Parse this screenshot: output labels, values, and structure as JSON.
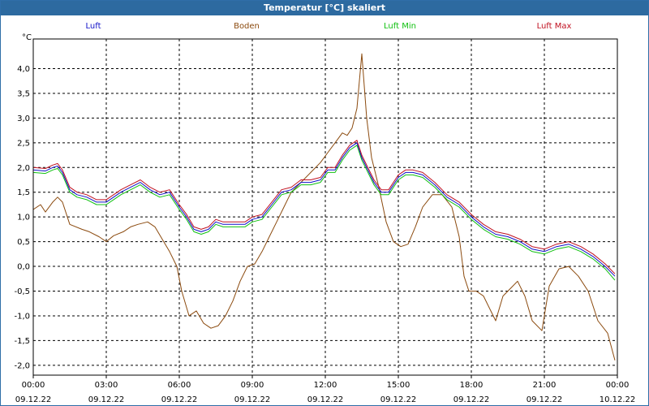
{
  "window": {
    "title": "Temperatur [°C] skaliert"
  },
  "chart_data": {
    "type": "line",
    "title": "Temperatur [°C] skaliert",
    "ylabel": "°C",
    "xlabel": "",
    "ylim": [
      -2.2,
      4.6
    ],
    "xlim": [
      0,
      24
    ],
    "grid": true,
    "legend_position": "top",
    "y_ticks": [
      "-2,0",
      "-1,5",
      "-1,0",
      "-0,5",
      "0,0",
      "0,5",
      "1,0",
      "1,5",
      "2,0",
      "2,5",
      "3,0",
      "3,5",
      "4,0"
    ],
    "y_tick_values": [
      -2.0,
      -1.5,
      -1.0,
      -0.5,
      0.0,
      0.5,
      1.0,
      1.5,
      2.0,
      2.5,
      3.0,
      3.5,
      4.0
    ],
    "x_tick_times": [
      "00:00",
      "03:00",
      "06:00",
      "09:00",
      "12:00",
      "15:00",
      "18:00",
      "21:00",
      "00:00"
    ],
    "x_tick_dates": [
      "09.12.22",
      "09.12.22",
      "09.12.22",
      "09.12.22",
      "09.12.22",
      "09.12.22",
      "09.12.22",
      "09.12.22",
      "10.12.22"
    ],
    "x_tick_hours": [
      0,
      3,
      6,
      9,
      12,
      15,
      18,
      21,
      24
    ],
    "series": [
      {
        "name": "Boden",
        "color": "#8b4a0e",
        "x": [
          0,
          0.3,
          0.5,
          0.8,
          1.0,
          1.2,
          1.5,
          2.0,
          2.3,
          2.7,
          3.0,
          3.3,
          3.7,
          4.0,
          4.3,
          4.7,
          5.0,
          5.3,
          5.6,
          5.9,
          6.1,
          6.4,
          6.7,
          7.0,
          7.3,
          7.6,
          7.9,
          8.2,
          8.5,
          8.8,
          9.1,
          9.4,
          9.7,
          10.0,
          10.3,
          10.6,
          11.0,
          11.4,
          11.8,
          12.1,
          12.4,
          12.7,
          12.9,
          13.1,
          13.3,
          13.5,
          13.7,
          13.9,
          14.2,
          14.5,
          14.8,
          15.1,
          15.4,
          15.7,
          16.0,
          16.4,
          16.8,
          17.2,
          17.5,
          17.7,
          17.9,
          18.2,
          18.5,
          18.8,
          19.0,
          19.3,
          19.6,
          19.9,
          20.2,
          20.5,
          20.9,
          21.2,
          21.6,
          22.0,
          22.4,
          22.8,
          23.2,
          23.6,
          23.9
        ],
        "values": [
          1.15,
          1.25,
          1.1,
          1.3,
          1.4,
          1.3,
          0.85,
          0.75,
          0.7,
          0.6,
          0.5,
          0.62,
          0.7,
          0.8,
          0.85,
          0.9,
          0.8,
          0.55,
          0.3,
          0.0,
          -0.5,
          -1.0,
          -0.9,
          -1.15,
          -1.25,
          -1.2,
          -1.0,
          -0.7,
          -0.3,
          0.0,
          0.05,
          0.3,
          0.6,
          0.9,
          1.2,
          1.5,
          1.7,
          1.9,
          2.1,
          2.3,
          2.5,
          2.7,
          2.65,
          2.8,
          3.2,
          4.3,
          3.0,
          2.2,
          1.6,
          0.9,
          0.5,
          0.4,
          0.45,
          0.8,
          1.2,
          1.45,
          1.45,
          1.2,
          0.6,
          -0.2,
          -0.5,
          -0.5,
          -0.6,
          -0.9,
          -1.1,
          -0.6,
          -0.45,
          -0.3,
          -0.6,
          -1.1,
          -1.3,
          -0.4,
          -0.05,
          0.0,
          -0.2,
          -0.5,
          -1.1,
          -1.35,
          -1.9
        ]
      },
      {
        "name": "Luft",
        "color": "#1010c8",
        "x": [
          0,
          0.5,
          0.8,
          1.0,
          1.2,
          1.5,
          1.8,
          2.2,
          2.6,
          3.0,
          3.3,
          3.6,
          4.0,
          4.4,
          4.8,
          5.2,
          5.6,
          6.0,
          6.3,
          6.6,
          6.9,
          7.2,
          7.5,
          7.8,
          8.1,
          8.4,
          8.7,
          9.0,
          9.4,
          9.8,
          10.2,
          10.6,
          11.0,
          11.4,
          11.8,
          12.1,
          12.4,
          12.7,
          13.0,
          13.3,
          13.5,
          13.7,
          14.0,
          14.3,
          14.6,
          15.0,
          15.3,
          15.6,
          16.0,
          16.5,
          17.0,
          17.5,
          18.0,
          18.5,
          19.0,
          19.5,
          20.0,
          20.5,
          21.0,
          21.5,
          22.0,
          22.5,
          23.0,
          23.5,
          23.9
        ],
        "values": [
          1.95,
          1.93,
          2.0,
          2.03,
          1.9,
          1.55,
          1.45,
          1.4,
          1.3,
          1.3,
          1.4,
          1.5,
          1.6,
          1.7,
          1.55,
          1.45,
          1.5,
          1.2,
          1.0,
          0.75,
          0.7,
          0.75,
          0.9,
          0.85,
          0.85,
          0.85,
          0.85,
          0.95,
          1.0,
          1.25,
          1.5,
          1.55,
          1.7,
          1.7,
          1.75,
          1.95,
          1.95,
          2.2,
          2.4,
          2.5,
          2.2,
          2.0,
          1.7,
          1.5,
          1.5,
          1.8,
          1.9,
          1.9,
          1.85,
          1.65,
          1.4,
          1.25,
          1.0,
          0.8,
          0.65,
          0.6,
          0.5,
          0.35,
          0.3,
          0.4,
          0.45,
          0.35,
          0.2,
          0.0,
          -0.2
        ]
      },
      {
        "name": "Luft Min",
        "color": "#10c010",
        "x": [
          0,
          0.5,
          0.8,
          1.0,
          1.2,
          1.5,
          1.8,
          2.2,
          2.6,
          3.0,
          3.3,
          3.6,
          4.0,
          4.4,
          4.8,
          5.2,
          5.6,
          6.0,
          6.3,
          6.6,
          6.9,
          7.2,
          7.5,
          7.8,
          8.1,
          8.4,
          8.7,
          9.0,
          9.4,
          9.8,
          10.2,
          10.6,
          11.0,
          11.4,
          11.8,
          12.1,
          12.4,
          12.7,
          13.0,
          13.3,
          13.5,
          13.7,
          14.0,
          14.3,
          14.6,
          15.0,
          15.3,
          15.6,
          16.0,
          16.5,
          17.0,
          17.5,
          18.0,
          18.5,
          19.0,
          19.5,
          20.0,
          20.5,
          21.0,
          21.5,
          22.0,
          22.5,
          23.0,
          23.5,
          23.9
        ],
        "values": [
          1.9,
          1.88,
          1.95,
          1.98,
          1.85,
          1.5,
          1.4,
          1.35,
          1.25,
          1.25,
          1.35,
          1.45,
          1.55,
          1.65,
          1.5,
          1.4,
          1.45,
          1.15,
          0.95,
          0.7,
          0.65,
          0.7,
          0.85,
          0.8,
          0.8,
          0.8,
          0.8,
          0.9,
          0.95,
          1.2,
          1.45,
          1.5,
          1.65,
          1.65,
          1.7,
          1.9,
          1.9,
          2.15,
          2.35,
          2.45,
          2.15,
          1.95,
          1.65,
          1.45,
          1.45,
          1.75,
          1.85,
          1.85,
          1.8,
          1.6,
          1.35,
          1.2,
          0.95,
          0.75,
          0.6,
          0.55,
          0.45,
          0.3,
          0.25,
          0.35,
          0.4,
          0.3,
          0.15,
          -0.05,
          -0.28
        ]
      },
      {
        "name": "Luft Max",
        "color": "#c01020",
        "x": [
          0,
          0.5,
          0.8,
          1.0,
          1.2,
          1.5,
          1.8,
          2.2,
          2.6,
          3.0,
          3.3,
          3.6,
          4.0,
          4.4,
          4.8,
          5.2,
          5.6,
          6.0,
          6.3,
          6.6,
          6.9,
          7.2,
          7.5,
          7.8,
          8.1,
          8.4,
          8.7,
          9.0,
          9.4,
          9.8,
          10.2,
          10.6,
          11.0,
          11.4,
          11.8,
          12.1,
          12.4,
          12.7,
          13.0,
          13.3,
          13.5,
          13.7,
          14.0,
          14.3,
          14.6,
          15.0,
          15.3,
          15.6,
          16.0,
          16.5,
          17.0,
          17.5,
          18.0,
          18.5,
          19.0,
          19.5,
          20.0,
          20.5,
          21.0,
          21.5,
          22.0,
          22.5,
          23.0,
          23.5,
          23.9
        ],
        "values": [
          2.0,
          1.98,
          2.05,
          2.08,
          1.95,
          1.6,
          1.5,
          1.45,
          1.35,
          1.35,
          1.45,
          1.55,
          1.65,
          1.75,
          1.6,
          1.5,
          1.55,
          1.25,
          1.05,
          0.8,
          0.75,
          0.8,
          0.95,
          0.9,
          0.9,
          0.9,
          0.9,
          1.0,
          1.05,
          1.3,
          1.55,
          1.6,
          1.75,
          1.75,
          1.8,
          2.0,
          2.0,
          2.25,
          2.45,
          2.55,
          2.25,
          2.05,
          1.75,
          1.55,
          1.55,
          1.85,
          1.95,
          1.95,
          1.9,
          1.7,
          1.45,
          1.3,
          1.05,
          0.85,
          0.7,
          0.65,
          0.55,
          0.4,
          0.35,
          0.45,
          0.5,
          0.4,
          0.25,
          0.05,
          -0.15
        ]
      }
    ]
  }
}
